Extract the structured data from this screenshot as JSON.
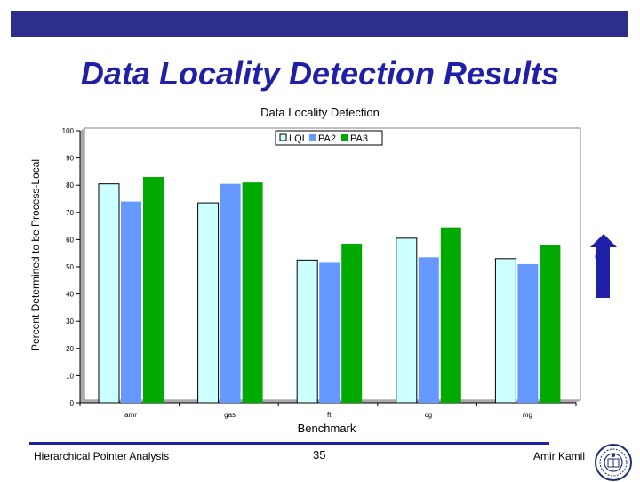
{
  "slide": {
    "title": "Data Locality Detection Results",
    "good_label": "Good"
  },
  "footer": {
    "left": "Hierarchical Pointer Analysis",
    "page": "35",
    "author": "Amir Kamil"
  },
  "chart_data": {
    "type": "bar",
    "title": "Data Locality Detection",
    "xlabel": "Benchmark",
    "ylabel": "Percent Determined to be Process-Local",
    "ylim": [
      0,
      100
    ],
    "yticks": [
      0,
      10,
      20,
      30,
      40,
      50,
      60,
      70,
      80,
      90,
      100
    ],
    "categories": [
      "amr",
      "gas",
      "ft",
      "cg",
      "mg"
    ],
    "legend_position": "top-right",
    "grid": false,
    "series": [
      {
        "name": "LQI",
        "color": "#ccffff",
        "values": [
          80.5,
          73.5,
          52.5,
          60.5,
          53
        ]
      },
      {
        "name": "PA2",
        "color": "#6699ff",
        "values": [
          74,
          80.5,
          51.5,
          53.5,
          51
        ]
      },
      {
        "name": "PA3",
        "color": "#00aa00",
        "values": [
          83,
          81,
          58.5,
          64.5,
          58
        ]
      }
    ]
  }
}
